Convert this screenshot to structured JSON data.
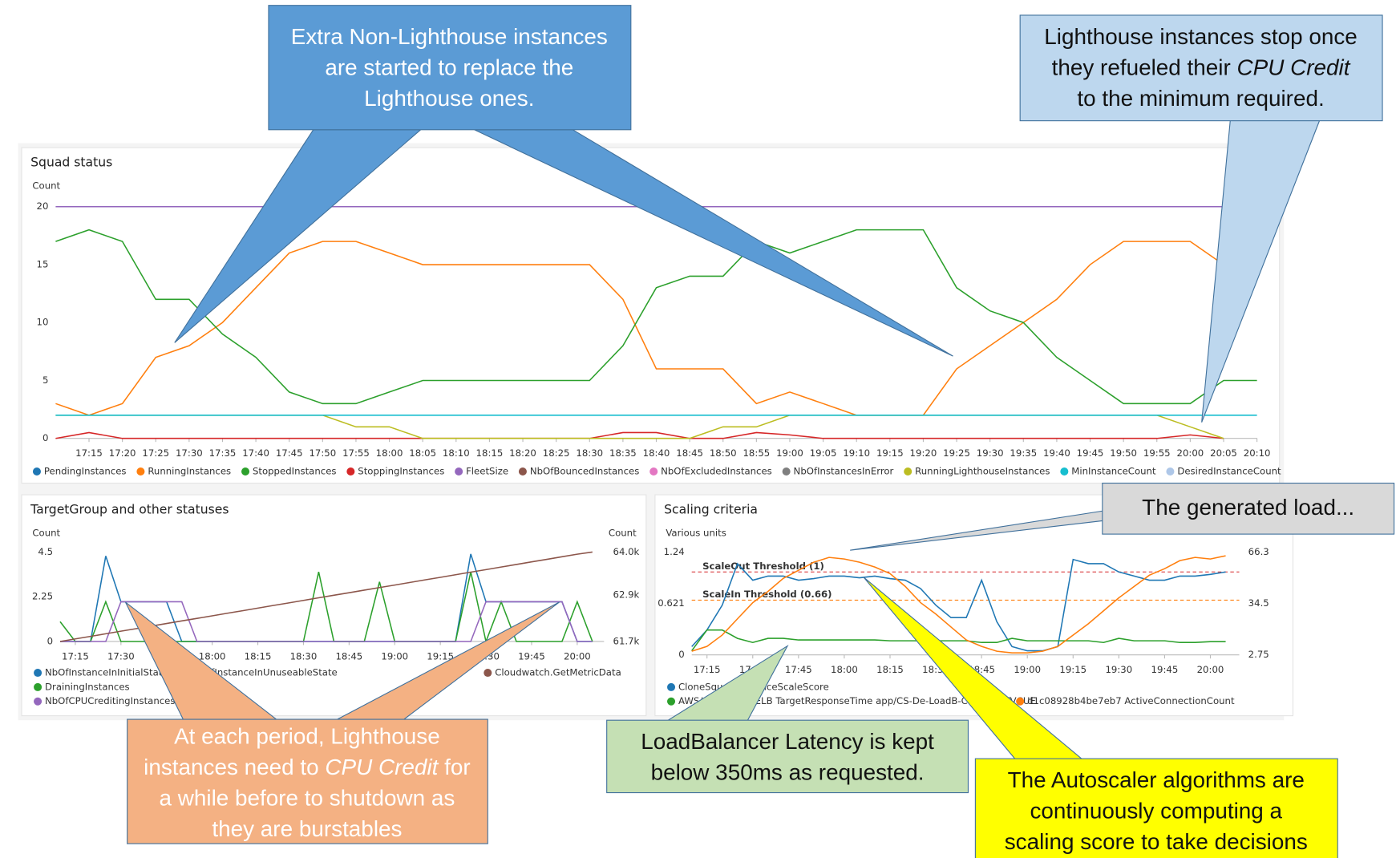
{
  "chart_data": [
    {
      "type": "line",
      "title": "Squad status",
      "ylabel": "Count",
      "legend": "bottom",
      "grid": false,
      "categories": [
        "17:10",
        "17:15",
        "17:20",
        "17:25",
        "17:30",
        "17:35",
        "17:40",
        "17:45",
        "17:50",
        "17:55",
        "18:00",
        "18:05",
        "18:10",
        "18:15",
        "18:20",
        "18:25",
        "18:30",
        "18:35",
        "18:40",
        "18:45",
        "18:50",
        "18:55",
        "19:00",
        "19:05",
        "19:10",
        "19:15",
        "19:20",
        "19:25",
        "19:30",
        "19:35",
        "19:40",
        "19:45",
        "19:50",
        "19:55",
        "20:00",
        "20:05",
        "20:10"
      ],
      "xticks": [
        "17:15",
        "17:20",
        "17:25",
        "17:30",
        "17:35",
        "17:40",
        "17:45",
        "17:50",
        "17:55",
        "18:00",
        "18:05",
        "18:10",
        "18:15",
        "18:20",
        "18:25",
        "18:30",
        "18:35",
        "18:40",
        "18:45",
        "18:50",
        "18:55",
        "19:00",
        "19:05",
        "19:10",
        "19:15",
        "19:20",
        "19:25",
        "19:30",
        "19:35",
        "19:40",
        "19:45",
        "19:50",
        "19:55",
        "20:00",
        "20:05",
        "20:10"
      ],
      "ylim": [
        0,
        20
      ],
      "yticks": [
        0,
        5,
        10,
        15,
        20
      ],
      "series": [
        {
          "name": "PendingInstances",
          "color": "#1f77b4"
        },
        {
          "name": "RunningInstances",
          "color": "#ff7f0e",
          "values": [
            3,
            2,
            3,
            7,
            8,
            10,
            13,
            16,
            17,
            17,
            16,
            15,
            15,
            15,
            15,
            15,
            15,
            12,
            6,
            6,
            6,
            3,
            4,
            3,
            2,
            2,
            2,
            6,
            8,
            10,
            12,
            15,
            17,
            17,
            17,
            15,
            null
          ]
        },
        {
          "name": "StoppedInstances",
          "color": "#2ca02c",
          "values": [
            17,
            18,
            17,
            12,
            12,
            9,
            7,
            4,
            3,
            3,
            4,
            5,
            5,
            5,
            5,
            5,
            5,
            8,
            13,
            14,
            14,
            17,
            16,
            17,
            18,
            18,
            18,
            13,
            11,
            10,
            7,
            5,
            3,
            3,
            3,
            5,
            5
          ]
        },
        {
          "name": "StoppingInstances",
          "color": "#d62728",
          "values": [
            0,
            0.5,
            0,
            0,
            0,
            0,
            0,
            0,
            0,
            0,
            0,
            0,
            0,
            0,
            0,
            0,
            0,
            0.5,
            0.5,
            0,
            0,
            0.5,
            0.3,
            0,
            0,
            0,
            0,
            0,
            0,
            0,
            0,
            0,
            0,
            0,
            0.3,
            0,
            null
          ]
        },
        {
          "name": "FleetSize",
          "color": "#9467bd",
          "values": [
            20,
            20,
            20,
            20,
            20,
            20,
            20,
            20,
            20,
            20,
            20,
            20,
            20,
            20,
            20,
            20,
            20,
            20,
            20,
            20,
            20,
            20,
            20,
            20,
            20,
            20,
            20,
            20,
            20,
            20,
            20,
            20,
            20,
            20,
            20,
            20,
            null
          ]
        },
        {
          "name": "NbOfBouncedInstances",
          "color": "#8c564b"
        },
        {
          "name": "NbOfExcludedInstances",
          "color": "#e377c2"
        },
        {
          "name": "NbOfInstancesInError",
          "color": "#7f7f7f"
        },
        {
          "name": "RunningLighthouseInstances",
          "color": "#bcbd22",
          "values": [
            2,
            2,
            2,
            2,
            2,
            2,
            2,
            2,
            2,
            1,
            1,
            0,
            0,
            0,
            0,
            0,
            0,
            0,
            0,
            0,
            1,
            1,
            2,
            2,
            2,
            2,
            2,
            2,
            2,
            2,
            2,
            2,
            2,
            2,
            1,
            0,
            null
          ]
        },
        {
          "name": "MinInstanceCount",
          "color": "#17becf",
          "values": [
            2,
            2,
            2,
            2,
            2,
            2,
            2,
            2,
            2,
            2,
            2,
            2,
            2,
            2,
            2,
            2,
            2,
            2,
            2,
            2,
            2,
            2,
            2,
            2,
            2,
            2,
            2,
            2,
            2,
            2,
            2,
            2,
            2,
            2,
            2,
            2,
            2
          ]
        },
        {
          "name": "DesiredInstanceCount",
          "color": "#aec7e8"
        }
      ]
    },
    {
      "type": "line",
      "title": "TargetGroup and other statuses",
      "ylabel": "Count",
      "y2label": "Count",
      "grid": false,
      "categories": [
        "17:10",
        "17:15",
        "17:20",
        "17:25",
        "17:30",
        "17:35",
        "17:40",
        "17:45",
        "17:50",
        "17:55",
        "18:00",
        "18:05",
        "18:10",
        "18:15",
        "18:20",
        "18:25",
        "18:30",
        "18:35",
        "18:40",
        "18:45",
        "18:50",
        "18:55",
        "19:00",
        "19:05",
        "19:10",
        "19:15",
        "19:20",
        "19:25",
        "19:30",
        "19:35",
        "19:40",
        "19:45",
        "19:50",
        "19:55",
        "20:00",
        "20:05"
      ],
      "xticks": [
        "17:15",
        "17:30",
        "17:45",
        "18:00",
        "18:15",
        "18:30",
        "18:45",
        "19:00",
        "19:15",
        "19:30",
        "19:45",
        "20:00"
      ],
      "ylim": [
        0,
        4.5
      ],
      "yticks": [
        0,
        2.25,
        4.5
      ],
      "y2lim": [
        61700,
        64000
      ],
      "y2ticks": [
        {
          "value": 61700,
          "label": "61.7k"
        },
        {
          "value": 62900,
          "label": "62.9k"
        },
        {
          "value": 64000,
          "label": "64.0k"
        }
      ],
      "series": [
        {
          "name": "NbOfInstanceInInitialState",
          "color": "#1f77b4",
          "values": [
            0,
            0,
            0,
            4.3,
            2,
            2,
            2,
            2,
            0,
            0,
            0,
            0,
            0,
            0,
            0,
            0,
            0,
            0,
            0,
            0,
            0,
            0,
            0,
            0,
            0,
            0,
            0,
            4.4,
            2,
            2,
            2,
            2,
            2,
            2,
            0,
            0
          ]
        },
        {
          "name": "NbOfInstanceInUnuseableState",
          "color": "#ff7f0e"
        },
        {
          "name": "DrainingInstances",
          "color": "#2ca02c",
          "values": [
            1,
            0,
            0,
            2,
            0,
            0,
            0,
            0,
            0,
            0,
            0,
            0,
            0,
            0,
            0,
            0,
            0,
            3.5,
            0,
            0,
            0,
            3,
            0,
            0,
            0,
            0,
            0,
            3.5,
            0,
            2,
            0,
            0,
            0,
            0,
            2,
            0
          ]
        },
        {
          "name": "NbOfCPUCreditingInstances",
          "color": "#9467bd",
          "values": [
            0,
            0,
            0,
            0,
            2,
            2,
            2,
            2,
            2,
            0,
            0,
            0,
            0,
            0,
            0,
            0,
            0,
            0,
            0,
            0,
            0,
            0,
            0,
            0,
            0,
            0,
            0,
            0,
            2,
            2,
            2,
            2,
            2,
            2,
            0,
            0
          ]
        },
        {
          "name": "Cloudwatch.GetMetricData",
          "color": "#8c564b",
          "axis": "y2",
          "values": [
            61700,
            61766,
            61832,
            61898,
            61964,
            62030,
            62096,
            62162,
            62228,
            62294,
            62360,
            62426,
            62492,
            62558,
            62624,
            62690,
            62756,
            62822,
            62888,
            62954,
            63020,
            63086,
            63152,
            63218,
            63284,
            63350,
            63416,
            63482,
            63548,
            63614,
            63680,
            63746,
            63812,
            63878,
            63944,
            64000
          ]
        }
      ]
    },
    {
      "type": "line",
      "title": "Scaling criteria",
      "ylabel": "Various units",
      "grid": false,
      "categories": [
        "17:10",
        "17:15",
        "17:20",
        "17:25",
        "17:30",
        "17:35",
        "17:40",
        "17:45",
        "17:50",
        "17:55",
        "18:00",
        "18:05",
        "18:10",
        "18:15",
        "18:20",
        "18:25",
        "18:30",
        "18:35",
        "18:40",
        "18:45",
        "18:50",
        "18:55",
        "19:00",
        "19:05",
        "19:10",
        "19:15",
        "19:20",
        "19:25",
        "19:30",
        "19:35",
        "19:40",
        "19:45",
        "19:50",
        "19:55",
        "20:00",
        "20:05"
      ],
      "xticks": [
        "17:15",
        "17:30",
        "17:45",
        "18:00",
        "18:15",
        "18:30",
        "18:45",
        "19:00",
        "19:15",
        "19:30",
        "19:45",
        "20:00"
      ],
      "ylim": [
        0,
        1.24
      ],
      "yticks": [
        0,
        0.621,
        1.24
      ],
      "y2lim": [
        2.75,
        66.3
      ],
      "y2ticks": [
        2.75,
        34.5,
        66.3
      ],
      "annotations": [
        {
          "value": 1,
          "label": "ScaleOut Threshold (1)",
          "color": "#d62728"
        },
        {
          "value": 0.66,
          "label": "ScaleIn Threshold (0.66)",
          "color": "#ff7f0e"
        }
      ],
      "series": [
        {
          "name": "CloneSquad.InstanceScaleScore",
          "color": "#1f77b4",
          "values": [
            0.1,
            0.3,
            0.6,
            1.1,
            0.9,
            0.95,
            0.95,
            0.9,
            0.92,
            0.95,
            0.95,
            0.93,
            0.95,
            0.92,
            0.9,
            0.8,
            0.6,
            0.45,
            0.45,
            0.9,
            0.4,
            0.1,
            0.05,
            0.05,
            0.1,
            1.15,
            1.1,
            1.1,
            1.0,
            0.95,
            0.9,
            0.9,
            0.95,
            0.95,
            0.97,
            1.0
          ]
        },
        {
          "name": "AWS/ApplicationELB TargetResponseTime app/CS-De-LoadB-C6Y7C3BTVCUE",
          "color": "#2ca02c",
          "values": [
            0.05,
            0.3,
            0.3,
            0.2,
            0.15,
            0.2,
            0.2,
            0.18,
            0.18,
            0.18,
            0.18,
            0.18,
            0.18,
            0.17,
            0.17,
            0.17,
            0.17,
            0.17,
            0.17,
            0.15,
            0.15,
            0.2,
            0.17,
            0.17,
            0.17,
            0.17,
            0.17,
            0.15,
            0.2,
            0.17,
            0.17,
            0.17,
            0.15,
            0.15,
            0.16,
            0.16
          ]
        },
        {
          "name": "d1c08928b4be7eb7 ActiveConnectionCount",
          "color": "#ff7f0e",
          "axis": "y2",
          "values": [
            5,
            8,
            15,
            25,
            35,
            42,
            50,
            55,
            60,
            63,
            62,
            60,
            57,
            53,
            45,
            35,
            28,
            20,
            12,
            8,
            5,
            4,
            4,
            5,
            8,
            15,
            22,
            30,
            38,
            45,
            52,
            56,
            61,
            63,
            62,
            64
          ]
        }
      ]
    }
  ],
  "callouts": [
    {
      "lines": [
        [
          "Extra Non-Lighthouse instances"
        ],
        [
          "are started to replace the"
        ],
        [
          "Lighthouse ones."
        ]
      ]
    },
    {
      "lines": [
        [
          "Lighthouse instances stop once"
        ],
        [
          "they refueled their ",
          {
            "text": "CPU Credit",
            "italic": true
          }
        ],
        [
          "to the minimum required."
        ]
      ]
    },
    {
      "lines": [
        [
          "The generated load..."
        ]
      ]
    },
    {
      "lines": [
        [
          "At each period, Lighthouse"
        ],
        [
          "instances need to ",
          {
            "text": "CPU Credit",
            "italic": true
          },
          " for"
        ],
        [
          "a while before to shutdown as"
        ],
        [
          "they are burstables"
        ]
      ]
    },
    {
      "lines": [
        [
          "LoadBalancer Latency is kept"
        ],
        [
          "below 350ms as requested."
        ]
      ]
    },
    {
      "lines": [
        [
          "The Autoscaler algorithms are"
        ],
        [
          "continuously computing a"
        ],
        [
          "scaling score to take decisions"
        ]
      ]
    }
  ]
}
